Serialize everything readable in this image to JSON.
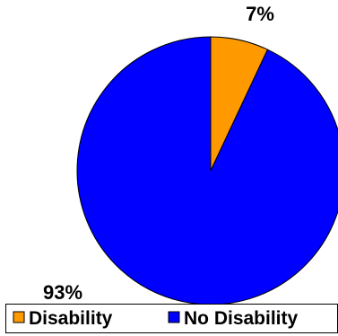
{
  "chart_data": {
    "type": "pie",
    "categories": [
      "Disability",
      "No Disability"
    ],
    "values": [
      7,
      93
    ],
    "data_labels": [
      "7%",
      "93%"
    ],
    "colors": [
      "#FF9900",
      "#0000FF"
    ],
    "legend": {
      "placement": "bottom",
      "entries": [
        "Disability",
        "No Disability"
      ]
    }
  }
}
